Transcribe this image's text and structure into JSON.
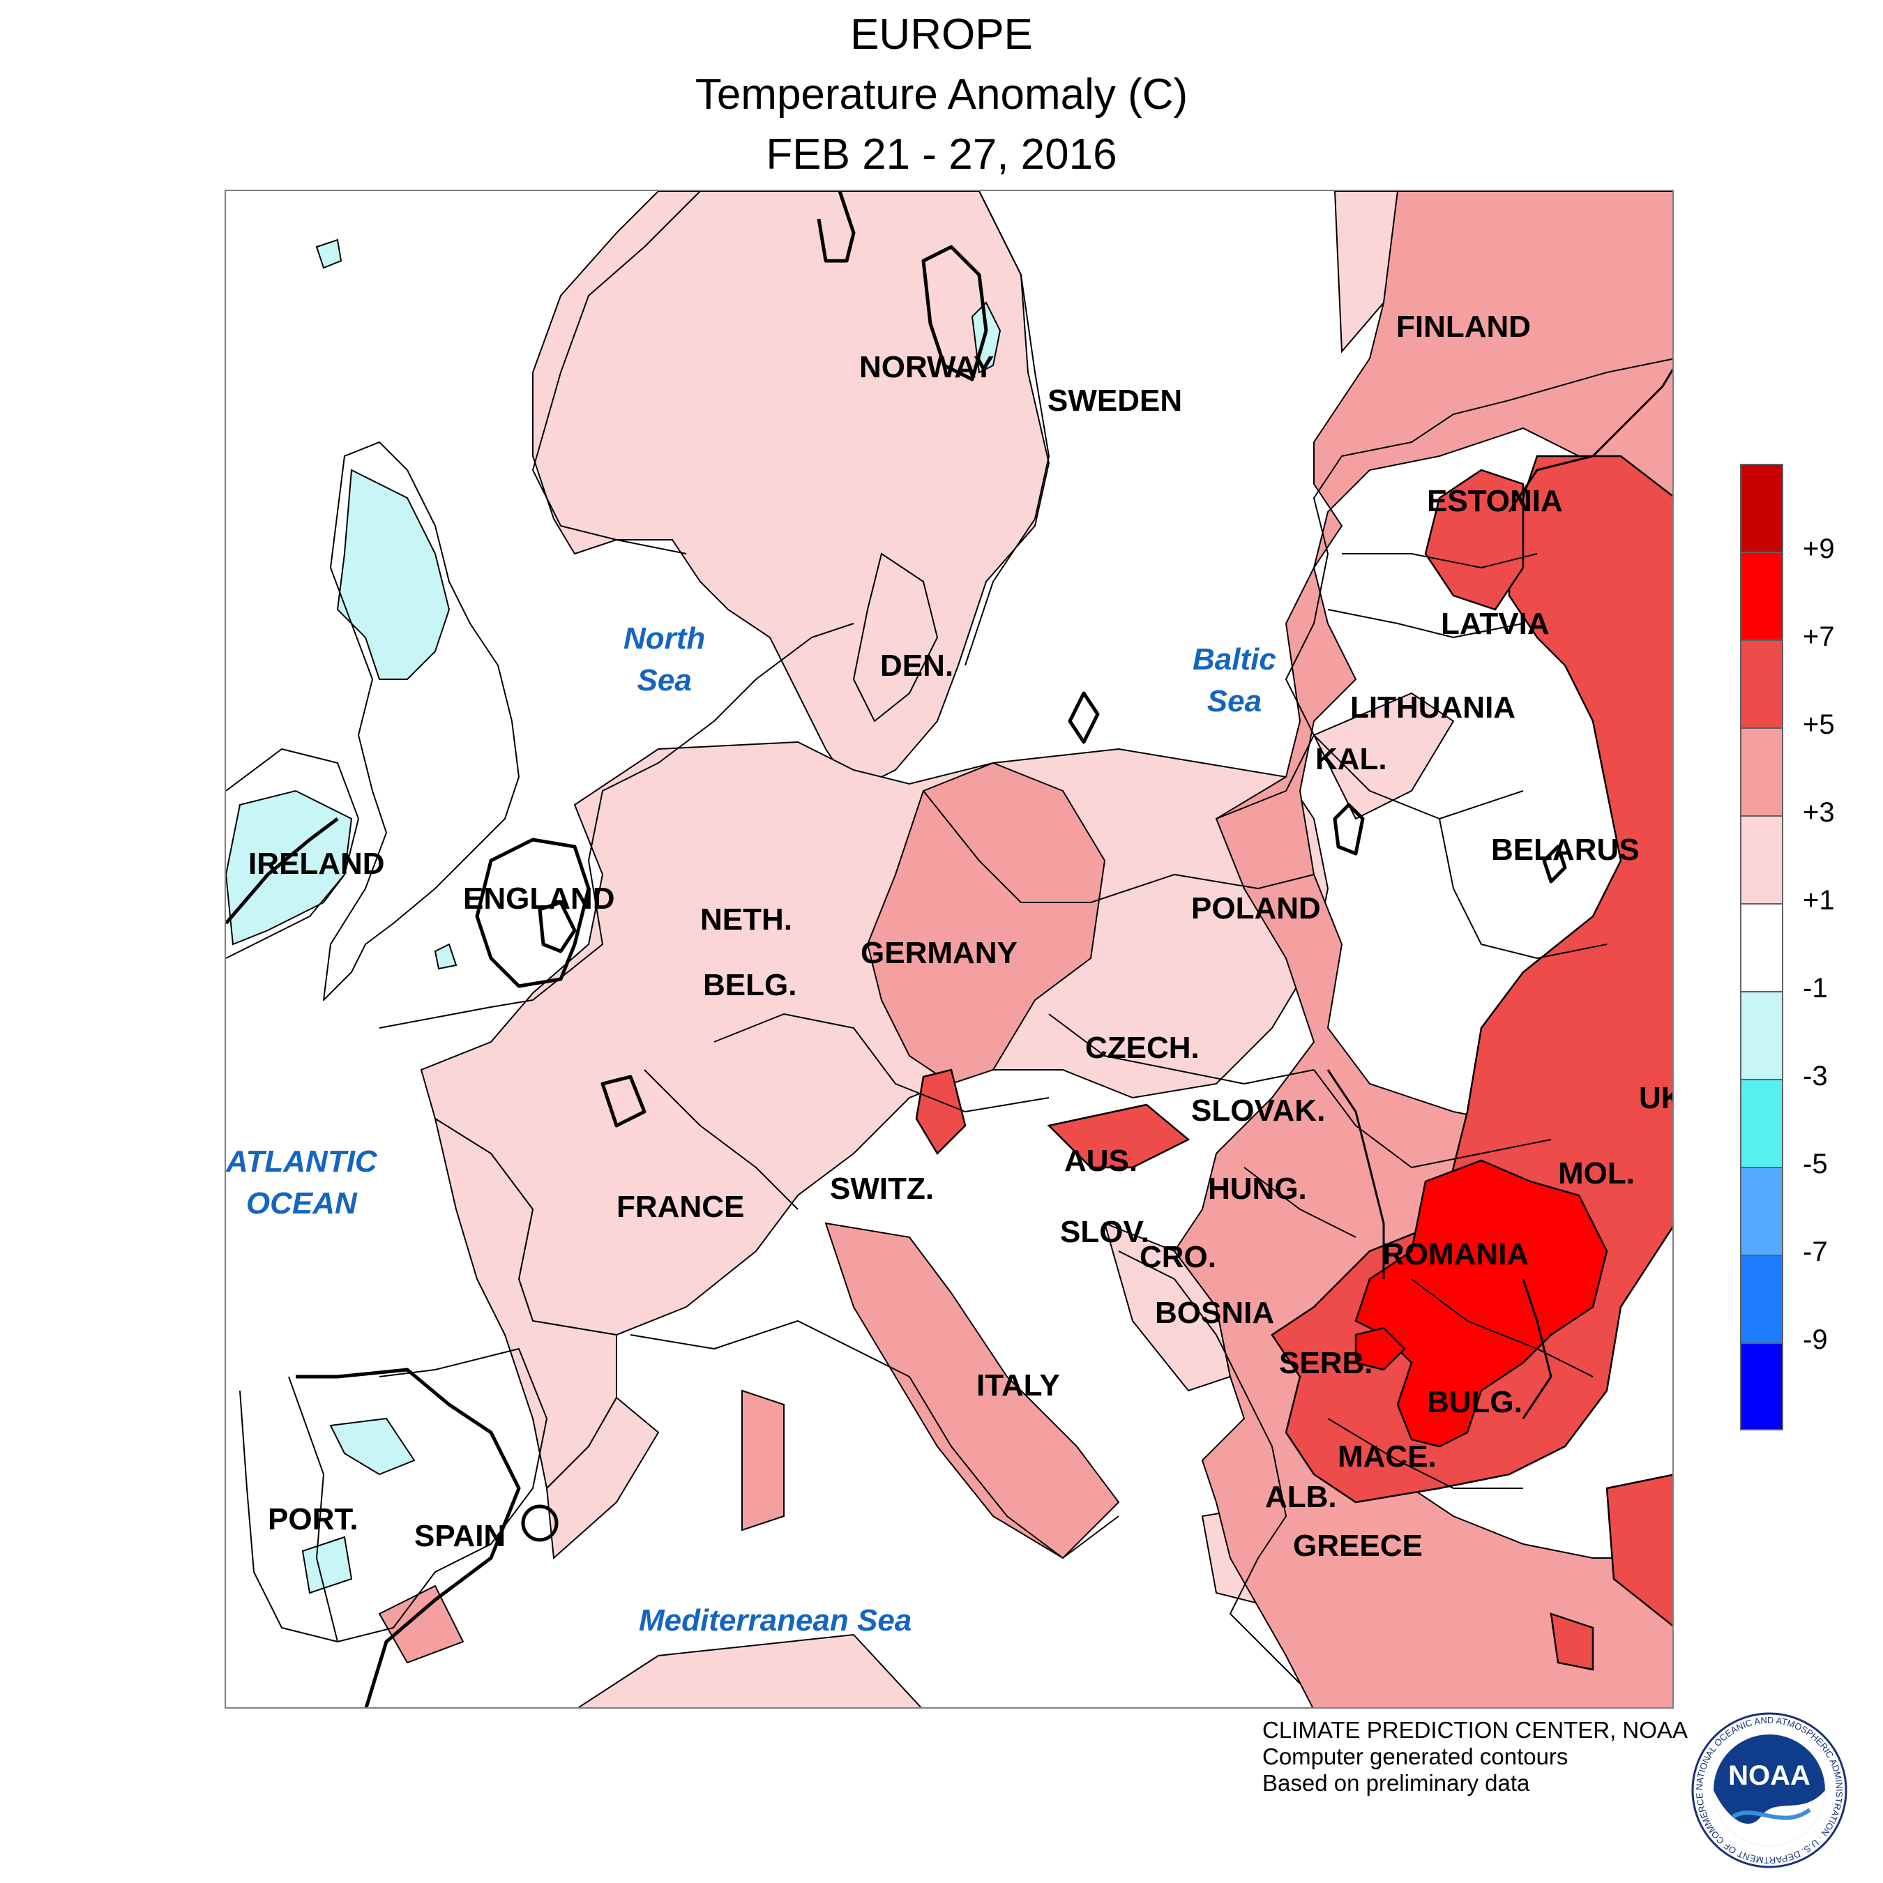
{
  "header": {
    "title": "EUROPE",
    "subtitle": "Temperature Anomaly (C)",
    "period": "FEB 21 - 27, 2016"
  },
  "map": {
    "countries": [
      {
        "id": "finland",
        "label": "FINLAND"
      },
      {
        "id": "norway",
        "label": "NORWAY"
      },
      {
        "id": "sweden",
        "label": "SWEDEN"
      },
      {
        "id": "estonia",
        "label": "ESTONIA"
      },
      {
        "id": "latvia",
        "label": "LATVIA"
      },
      {
        "id": "lithuania",
        "label": "LITHUANIA"
      },
      {
        "id": "kal",
        "label": "KAL."
      },
      {
        "id": "den",
        "label": "DEN."
      },
      {
        "id": "ireland",
        "label": "IRELAND"
      },
      {
        "id": "england",
        "label": "ENGLAND"
      },
      {
        "id": "neth",
        "label": "NETH."
      },
      {
        "id": "belg",
        "label": "BELG."
      },
      {
        "id": "germany",
        "label": "GERMANY"
      },
      {
        "id": "poland",
        "label": "POLAND"
      },
      {
        "id": "belarus",
        "label": "BELARUS"
      },
      {
        "id": "czech",
        "label": "CZECH."
      },
      {
        "id": "slovak",
        "label": "SLOVAK."
      },
      {
        "id": "ukr",
        "label": "UKR"
      },
      {
        "id": "aus",
        "label": "AUS."
      },
      {
        "id": "hung",
        "label": "HUNG."
      },
      {
        "id": "mol",
        "label": "MOL."
      },
      {
        "id": "france",
        "label": "FRANCE"
      },
      {
        "id": "switz",
        "label": "SWITZ."
      },
      {
        "id": "slov",
        "label": "SLOV."
      },
      {
        "id": "cro",
        "label": "CRO."
      },
      {
        "id": "romania",
        "label": "ROMANIA"
      },
      {
        "id": "bosnia",
        "label": "BOSNIA"
      },
      {
        "id": "serb",
        "label": "SERB."
      },
      {
        "id": "bulg",
        "label": "BULG."
      },
      {
        "id": "italy",
        "label": "ITALY"
      },
      {
        "id": "mace",
        "label": "MACE."
      },
      {
        "id": "alb",
        "label": "ALB."
      },
      {
        "id": "greece",
        "label": "GREECE"
      },
      {
        "id": "port",
        "label": "PORT."
      },
      {
        "id": "spain",
        "label": "SPAIN"
      }
    ],
    "seas": [
      {
        "id": "north",
        "line1": "North",
        "line2": "Sea"
      },
      {
        "id": "baltic",
        "line1": "Baltic",
        "line2": "Sea"
      },
      {
        "id": "atlantic",
        "line1": "ATLANTIC",
        "line2": "OCEAN"
      },
      {
        "id": "med",
        "line1": "Mediterranean Sea",
        "line2": ""
      }
    ]
  },
  "legend": {
    "labels": [
      "+9",
      "+7",
      "+5",
      "+3",
      "+1",
      "-1",
      "-3",
      "-5",
      "-7",
      "-9"
    ],
    "colors": [
      "#c80000",
      "#ff0000",
      "#ee4b4b",
      "#f5a0a0",
      "#fad6d6",
      "#ffffff",
      "#c8f5f5",
      "#55f0f0",
      "#55aaff",
      "#1e7cff",
      "#0000ff"
    ]
  },
  "credits": {
    "line1": "CLIMATE PREDICTION CENTER, NOAA",
    "line2": "Computer generated contours",
    "line3": "Based on preliminary data"
  },
  "logo": {
    "text": "NOAA",
    "ring": "NATIONAL OCEANIC AND ATMOSPHERIC ADMINISTRATION · U.S. DEPARTMENT OF COMMERCE"
  }
}
